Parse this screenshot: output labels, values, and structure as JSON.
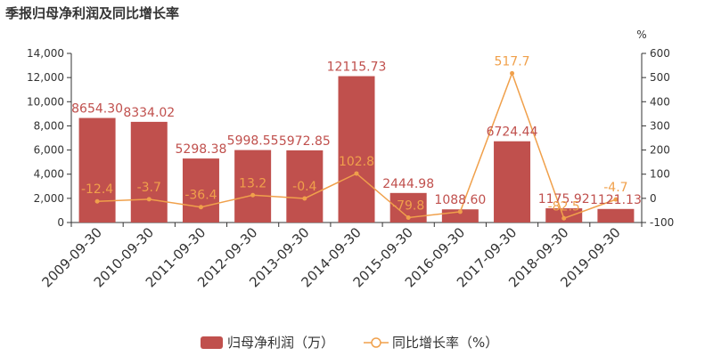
{
  "chart_data": {
    "type": "bar",
    "title": "季报归母净利润及同比增长率",
    "categories": [
      "2009-09-30",
      "2010-09-30",
      "2011-09-30",
      "2012-09-30",
      "2013-09-30",
      "2014-09-30",
      "2015-09-30",
      "2016-09-30",
      "2017-09-30",
      "2018-09-30",
      "2019-09-30"
    ],
    "series": [
      {
        "name": "归母净利润（万）",
        "type": "bar",
        "axis": "left",
        "color": "#c0504d",
        "values": [
          8654.3,
          8334.02,
          5298.38,
          5998.55,
          5972.85,
          12115.73,
          2444.98,
          1088.6,
          6724.44,
          1175.92,
          1121.13
        ],
        "labels": [
          "8654.30",
          "8334.02",
          "5298.38",
          "5998.55",
          "5972.85",
          "12115.73",
          "2444.98",
          "1088.60",
          "6724.44",
          "1175.92",
          "1121.13"
        ]
      },
      {
        "name": "同比增长率（%）",
        "type": "line",
        "axis": "right",
        "color": "#f0a04b",
        "values": [
          -12.4,
          -3.7,
          -36.4,
          13.2,
          -0.4,
          102.8,
          -79.8,
          -55.5,
          517.7,
          -82.5,
          -4.7
        ],
        "labels": [
          "-12.4",
          "-3.7",
          "-36.4",
          "13.2",
          "-0.4",
          "102.8",
          "-79.8",
          "",
          "517.7",
          "-82.5",
          "-4.7"
        ]
      }
    ],
    "left_axis": {
      "ylim": [
        0,
        14000
      ],
      "ticks": [
        "0",
        "2,000",
        "4,000",
        "6,000",
        "8,000",
        "10,000",
        "12,000",
        "14,000"
      ],
      "tick_values": [
        0,
        2000,
        4000,
        6000,
        8000,
        10000,
        12000,
        14000
      ]
    },
    "right_axis": {
      "unit": "%",
      "ylim": [
        -100,
        600
      ],
      "ticks": [
        "-100",
        "0",
        "100",
        "200",
        "300",
        "400",
        "500",
        "600"
      ],
      "tick_values": [
        -100,
        0,
        100,
        200,
        300,
        400,
        500,
        600
      ]
    },
    "grid": false,
    "legend_position": "bottom"
  }
}
